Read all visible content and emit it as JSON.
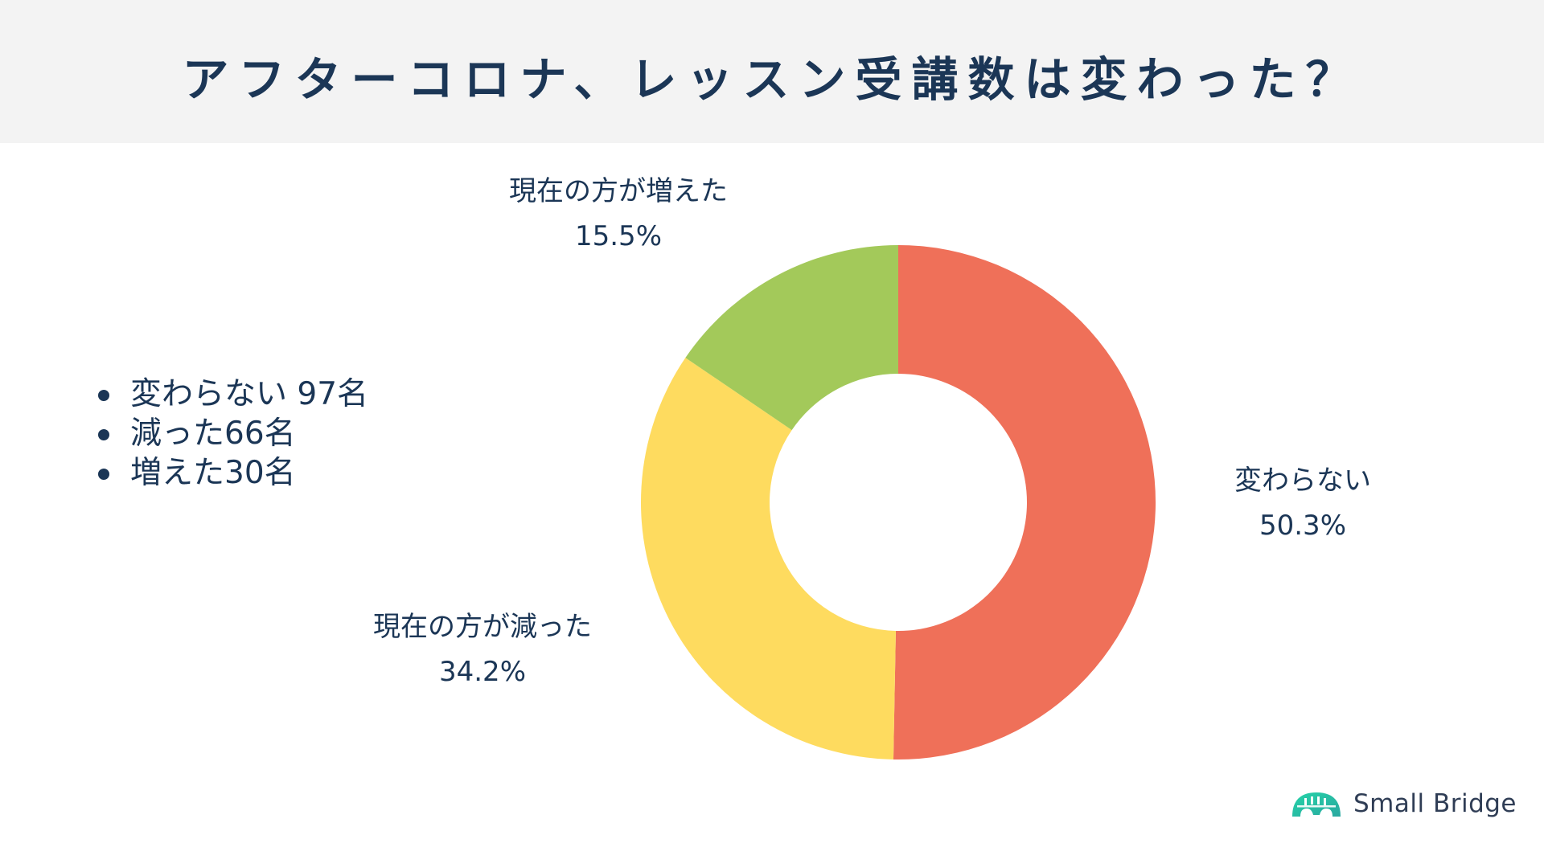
{
  "header": {
    "title": "アフターコロナ、レッスン受講数は変わった？"
  },
  "summary_list": [
    {
      "text": "変わらない 97名"
    },
    {
      "text": "減った66名"
    },
    {
      "text": "増えた30名"
    }
  ],
  "chart_data": {
    "type": "pie",
    "subtype": "donut",
    "title": "アフターコロナ、レッスン受講数は変わった？",
    "categories": [
      "変わらない",
      "現在の方が減った",
      "現在の方が増えた"
    ],
    "values": [
      50.3,
      34.2,
      15.5
    ],
    "counts": [
      97,
      66,
      30
    ],
    "unit": "%",
    "colors": [
      "#ef7059",
      "#fedb5f",
      "#a3c95a"
    ],
    "start_angle": "12 o'clock, clockwise",
    "legend": "none (data labels outside slices)",
    "labels": [
      {
        "name": "変わらない",
        "value": "50.3%"
      },
      {
        "name": "現在の方が減った",
        "value": "34.2%"
      },
      {
        "name": "現在の方が増えた",
        "value": "15.5%"
      }
    ]
  },
  "labels": {
    "unchanged": {
      "name": "変わらない",
      "value": "50.3%"
    },
    "decreased": {
      "name": "現在の方が減った",
      "value": "34.2%"
    },
    "increased": {
      "name": "現在の方が増えた",
      "value": "15.5%"
    }
  },
  "colors": {
    "header_bg": "#f3f3f3",
    "text": "#1b3656",
    "unchanged": "#ef7059",
    "decreased": "#fedb5f",
    "increased": "#a3c95a",
    "logo_gradient_start": "#1fd1a6",
    "logo_gradient_end": "#2bb7a2"
  },
  "logo": {
    "text": "Small Bridge"
  }
}
